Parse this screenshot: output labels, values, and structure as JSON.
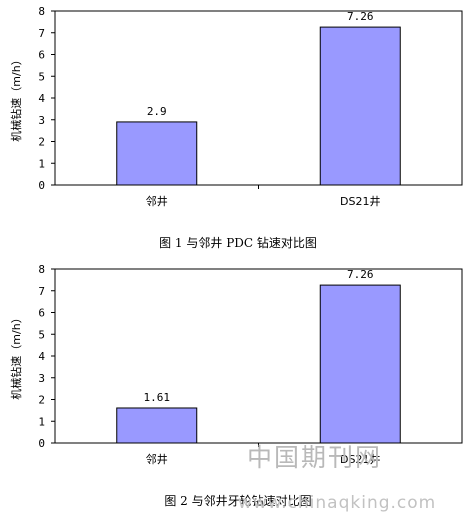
{
  "chart_data": [
    {
      "type": "bar",
      "caption": "图 1  与邻井 PDC 钻速对比图",
      "ylabel": "机械钻速（m/h）",
      "ylim": [
        0,
        8
      ],
      "yticks": [
        0,
        1,
        2,
        3,
        4,
        5,
        6,
        7,
        8
      ],
      "categories": [
        "邻井",
        "DS21井"
      ],
      "values": [
        2.9,
        7.26
      ],
      "data_labels": [
        "2.9",
        "7.26"
      ],
      "bar_color": "#9999ff",
      "grid": false,
      "legend": "none"
    },
    {
      "type": "bar",
      "caption": "图 2  与邻井牙轮钻速对比图",
      "ylabel": "机械钻速（m/h）",
      "ylim": [
        0,
        8
      ],
      "yticks": [
        0,
        1,
        2,
        3,
        4,
        5,
        6,
        7,
        8
      ],
      "categories": [
        "邻井",
        "DS21井"
      ],
      "values": [
        1.61,
        7.26
      ],
      "data_labels": [
        "1.61",
        "7.26"
      ],
      "bar_color": "#9999ff",
      "grid": false,
      "legend": "none"
    }
  ],
  "watermark": {
    "text_cn": "中国期刊网",
    "url": "www.chinaqking.com"
  }
}
